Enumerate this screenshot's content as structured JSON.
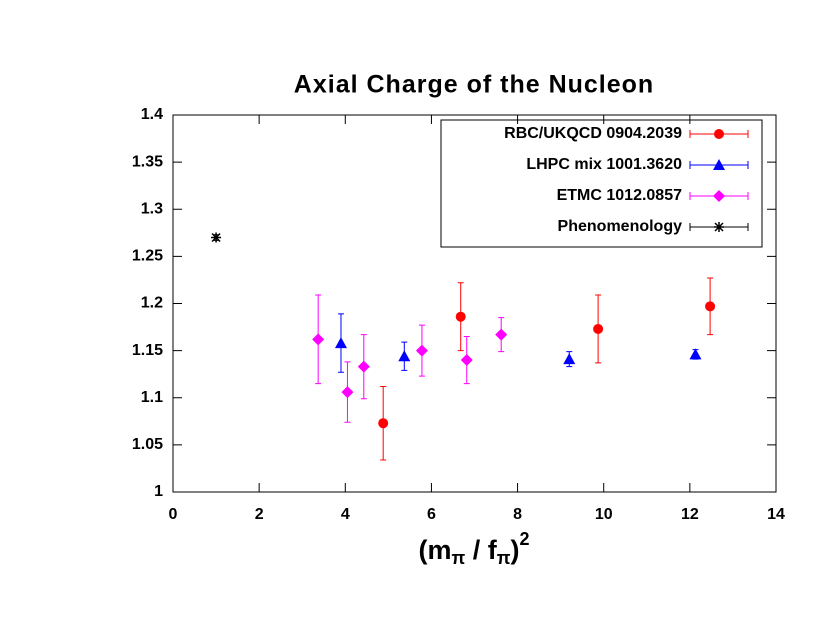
{
  "chart_data": {
    "type": "scatter",
    "title": "Axial Charge of the Nucleon",
    "x_label": [
      "(m",
      "π",
      " / f",
      "π",
      ")",
      "2"
    ],
    "xlim": [
      0,
      14
    ],
    "xticks": [
      0,
      2,
      4,
      6,
      8,
      10,
      12,
      14
    ],
    "ylim": [
      1,
      1.4
    ],
    "yticks": [
      1,
      1.05,
      1.1,
      1.15,
      1.2,
      1.25,
      1.3,
      1.35,
      1.4
    ],
    "legend": "top-right",
    "series": [
      {
        "name": "RBC/UKQCD 0904.2039",
        "color": "#ff0000",
        "marker": "circle",
        "x": [
          4.88,
          6.68,
          9.87,
          12.47
        ],
        "values": [
          1.073,
          1.186,
          1.173,
          1.197
        ],
        "errors": [
          0.039,
          0.036,
          0.036,
          0.03
        ]
      },
      {
        "name": "LHPC mix 1001.3620",
        "color": "#0000ff",
        "marker": "triangle",
        "x": [
          3.9,
          5.37,
          9.2,
          12.13
        ],
        "values": [
          1.158,
          1.144,
          1.141,
          1.146
        ],
        "errors": [
          0.031,
          0.015,
          0.008,
          0.005
        ]
      },
      {
        "name": "ETMC 1012.0857",
        "color": "#ff00ff",
        "marker": "diamond",
        "x": [
          3.37,
          4.05,
          4.43,
          5.78,
          6.82,
          7.62
        ],
        "values": [
          1.162,
          1.106,
          1.133,
          1.15,
          1.14,
          1.167
        ],
        "errors": [
          0.047,
          0.032,
          0.034,
          0.027,
          0.025,
          0.018
        ]
      },
      {
        "name": "Phenomenology",
        "color": "#000000",
        "marker": "star",
        "x": [
          1.0
        ],
        "values": [
          1.27
        ],
        "errors": [
          0.003
        ]
      }
    ]
  }
}
